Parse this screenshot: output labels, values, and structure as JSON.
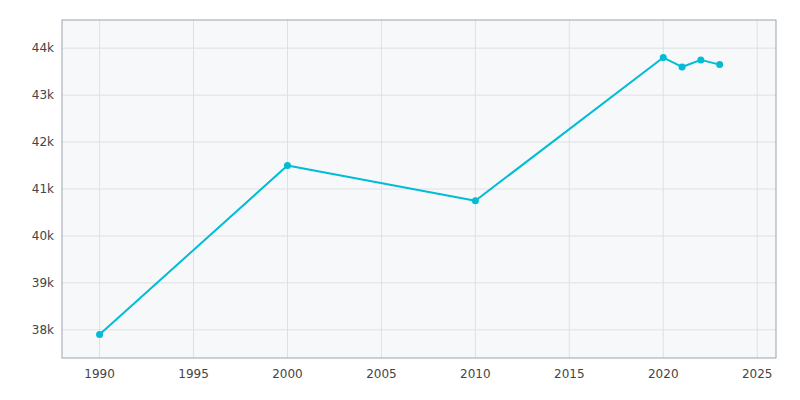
{
  "chart_data": {
    "type": "line",
    "x": [
      1990,
      2000,
      2010,
      2020,
      2021,
      2022,
      2023
    ],
    "values": [
      37900,
      41500,
      40750,
      43800,
      43600,
      43750,
      43650
    ],
    "color": "#00BCD4",
    "marker": "circle",
    "xlim": [
      1988,
      2026
    ],
    "ylim": [
      37400,
      44600
    ],
    "xticks": [
      1990,
      1995,
      2000,
      2005,
      2010,
      2015,
      2020,
      2025
    ],
    "yticks": [
      {
        "value": 38000,
        "label": "38k"
      },
      {
        "value": 39000,
        "label": "39k"
      },
      {
        "value": 40000,
        "label": "40k"
      },
      {
        "value": 41000,
        "label": "41k"
      },
      {
        "value": 42000,
        "label": "42k"
      },
      {
        "value": 43000,
        "label": "43k"
      },
      {
        "value": 44000,
        "label": "44k"
      }
    ],
    "grid": true
  }
}
